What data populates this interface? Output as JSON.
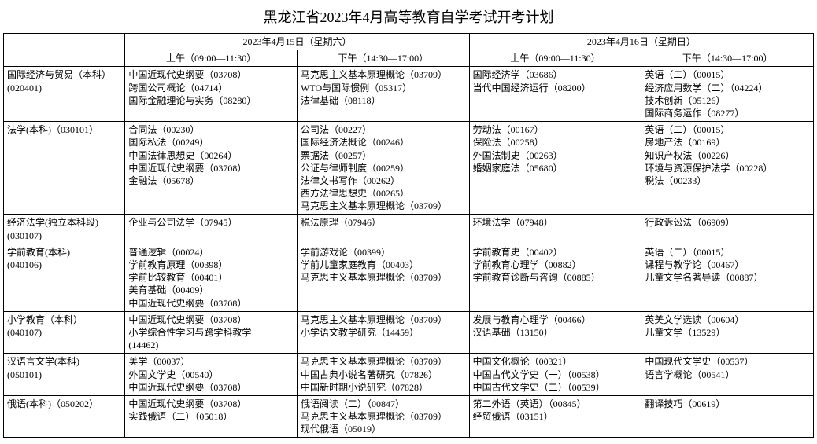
{
  "title": "黑龙江省2023年4月高等教育自学考试开考计划",
  "day_headers": [
    "2023年4月15日（星期六）",
    "2023年4月16日（星期日）"
  ],
  "session_headers": [
    "上午（09:00—11:30）",
    "下午（14:30—17:00）",
    "上午（09:00—11:30）",
    "下午（14:30—17:00）"
  ],
  "rows": [
    {
      "major": [
        "国际经济与贸易（本科）",
        "(020401)"
      ],
      "slots": [
        [
          "中国近现代史纲要（03708）",
          "跨国公司概论（04714）",
          "国际金融理论与实务（08280）"
        ],
        [
          "马克思主义基本原理概论（03709）",
          "WTO与国际惯例（05317）",
          "法律基础（08118）"
        ],
        [
          "国际经济学（03686）",
          "当代中国经济运行（08200）"
        ],
        [
          "英语（二）（00015）",
          "经济应用数学（二）（04224）",
          "技术创新（05126）",
          "国际商务运作（08277）"
        ]
      ]
    },
    {
      "major": [
        "法学(本科)（030101）"
      ],
      "slots": [
        [
          "合同法（00230）",
          "国际私法（00249）",
          "中国法律思想史（00264）",
          "中国近现代史纲要（03708）",
          "金融法（05678）"
        ],
        [
          "公司法（00227）",
          "国际经济法概论（00246）",
          "票据法（00257）",
          "公证与律师制度（00259）",
          "法律文书写作（00262）",
          "西方法律思想史（00265）",
          "马克思主义基本原理概论（03709）"
        ],
        [
          "劳动法（00167）",
          "保险法（00258）",
          "外国法制史（00263）",
          "婚姻家庭法（05680）"
        ],
        [
          "英语（二）（00015）",
          "房地产法（00169）",
          "知识产权法（00226）",
          "环境与资源保护法学（00228）",
          "税法（00233）"
        ]
      ]
    },
    {
      "major": [
        "经济法学(独立本科段)",
        "(030107)"
      ],
      "slots": [
        [
          "企业与公司法学（07945）"
        ],
        [
          "税法原理（07946）"
        ],
        [
          "环境法学（07948）"
        ],
        [
          "行政诉讼法（06909）"
        ]
      ]
    },
    {
      "major": [
        "学前教育(本科)",
        "(040106)"
      ],
      "slots": [
        [
          "普通逻辑（00024）",
          "学前教育原理（00398）",
          "学前比较教育（00401）",
          "美育基础（00409）",
          "中国近现代史纲要（03708）"
        ],
        [
          "学前游戏论（00399）",
          "学前儿童家庭教育（00403）",
          "马克思主义基本原理概论（03709）"
        ],
        [
          "学前教育史（00402）",
          "学前教育心理学（00882）",
          "学前教育诊断与咨询（00885）"
        ],
        [
          "英语（二）（00015）",
          "课程与教学论（00467）",
          "儿童文学名著导读（00887）"
        ]
      ]
    },
    {
      "major": [
        "小学教育（本科）",
        "(040107)"
      ],
      "slots": [
        [
          "中国近现代史纲要（03708）",
          "小学综合性学习与跨学科教学",
          "(14462)"
        ],
        [
          "马克思主义基本原理概论（03709）",
          "小学语文教学研究（14459）"
        ],
        [
          "发展与教育心理学（00466）",
          "汉语基础（13150）"
        ],
        [
          "英美文学选读（00604）",
          "儿童文学（13529）"
        ]
      ]
    },
    {
      "major": [
        "汉语言文学(本科)",
        "(050101)"
      ],
      "slots": [
        [
          "美学（00037）",
          "外国文学史（00540）",
          "中国近现代史纲要（03708）"
        ],
        [
          "马克思主义基本原理概论（03709）",
          "中国古典小说名著研究（07826）",
          "中国新时期小说研究（07828）"
        ],
        [
          "中国文化概论（00321）",
          "中国古代文学史（一）（00538）",
          "中国古代文学史（二）（00539）"
        ],
        [
          "中国现代文学史（00537）",
          "语言学概论（00541）"
        ]
      ]
    },
    {
      "major": [
        "俄语(本科)（050202）"
      ],
      "slots": [
        [
          "中国近现代史纲要（03708）",
          "实践俄语（二）（05018）"
        ],
        [
          "俄语阅读（二）（00847）",
          "马克思主义基本原理概论（03709）",
          "现代俄语（05019）"
        ],
        [
          "第二外语（英语）（00845）",
          "经贸俄语（03151）"
        ],
        [
          "翻译技巧（00619）"
        ]
      ]
    }
  ]
}
